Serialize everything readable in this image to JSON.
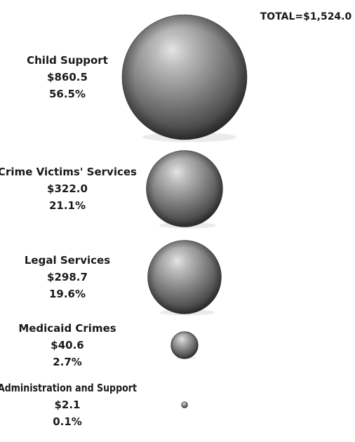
{
  "total_label": "TOTAL=$1,524.0",
  "chart_data": {
    "type": "bubble",
    "title": "",
    "total": 1524.0,
    "series": [
      {
        "name": "Child Support",
        "value_label": "$860.5",
        "value": 860.5,
        "percent_label": "56.5%",
        "percent": 56.5
      },
      {
        "name": "Crime Victims' Services",
        "value_label": "$322.0",
        "value": 322.0,
        "percent_label": "21.1%",
        "percent": 21.1
      },
      {
        "name": "Legal Services",
        "value_label": "$298.7",
        "value": 298.7,
        "percent_label": "19.6%",
        "percent": 19.6
      },
      {
        "name": "Medicaid Crimes",
        "value_label": "$40.6",
        "value": 40.6,
        "percent_label": "2.7%",
        "percent": 2.7
      },
      {
        "name": "Administration and Support",
        "value_label": "$2.1",
        "value": 2.1,
        "percent_label": "0.1%",
        "percent": 0.1
      }
    ],
    "bubble_color": "#7a7a7a"
  }
}
